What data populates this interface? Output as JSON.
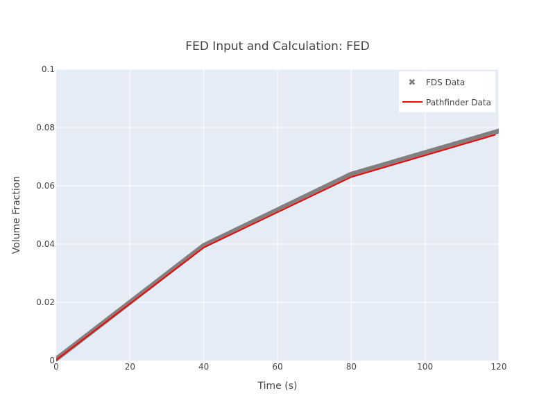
{
  "chart_data": {
    "type": "line",
    "title": "FED Input and Calculation: FED",
    "xlabel": "Time (s)",
    "ylabel": "Volume Fraction",
    "xlim": [
      0,
      120
    ],
    "ylim": [
      0,
      0.1
    ],
    "xticks": [
      0,
      20,
      40,
      60,
      80,
      100,
      120
    ],
    "xtick_labels": [
      "0",
      "20",
      "40",
      "60",
      "80",
      "100",
      "120"
    ],
    "yticks": [
      0,
      0.02,
      0.04,
      0.06,
      0.08,
      0.1
    ],
    "ytick_labels": [
      "0",
      "0.02",
      "0.04",
      "0.06",
      "0.08",
      "0.1"
    ],
    "grid": true,
    "legend_position": "top-right",
    "series": [
      {
        "name": "FDS Data",
        "marker": "x",
        "x": [
          0,
          40,
          80,
          120
        ],
        "y": [
          0.0005,
          0.0395,
          0.064,
          0.0788
        ]
      },
      {
        "name": "Pathfinder Data",
        "marker": "line",
        "x": [
          0,
          40,
          80,
          119
        ],
        "y": [
          0.0002,
          0.0388,
          0.063,
          0.0775
        ]
      }
    ],
    "colors": {
      "plot_bg": "#E5ECF6",
      "grid": "#ffffff",
      "fds": "#808080",
      "pathfinder": "#ff0000"
    }
  }
}
